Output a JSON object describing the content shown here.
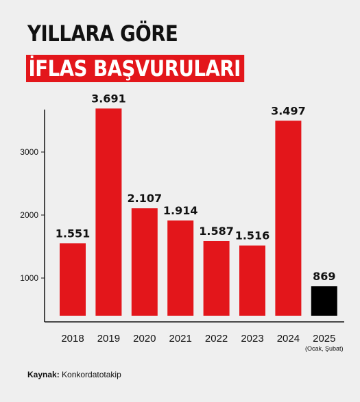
{
  "header": {
    "title_line1": "YILLARA GÖRE",
    "title_line2": "İFLAS BAŞVURULARI"
  },
  "source": {
    "label": "Kaynak:",
    "value": "Konkordatotakip"
  },
  "colors": {
    "bar": "#e3161b",
    "bar_highlight": "#000000",
    "title_bg": "#e3161b",
    "background": "#efefef"
  },
  "chart_data": {
    "type": "bar",
    "categories": [
      "2018",
      "2019",
      "2020",
      "2021",
      "2022",
      "2023",
      "2024",
      "2025"
    ],
    "category_notes": [
      "",
      "",
      "",
      "",
      "",
      "",
      "",
      "(Ocak, Şubat)"
    ],
    "values": [
      1551,
      3691,
      2107,
      1914,
      1587,
      1516,
      3497,
      869
    ],
    "data_labels": [
      "1.551",
      "3.691",
      "2.107",
      "1.914",
      "1.587",
      "1.516",
      "3.497",
      "869"
    ],
    "highlight_index": 7,
    "yticks": [
      1000,
      2000,
      3000
    ],
    "ylim": [
      0,
      4100
    ],
    "title": "YILLARA GÖRE İFLAS BAŞVURULARI",
    "xlabel": "",
    "ylabel": "",
    "grid": false
  }
}
